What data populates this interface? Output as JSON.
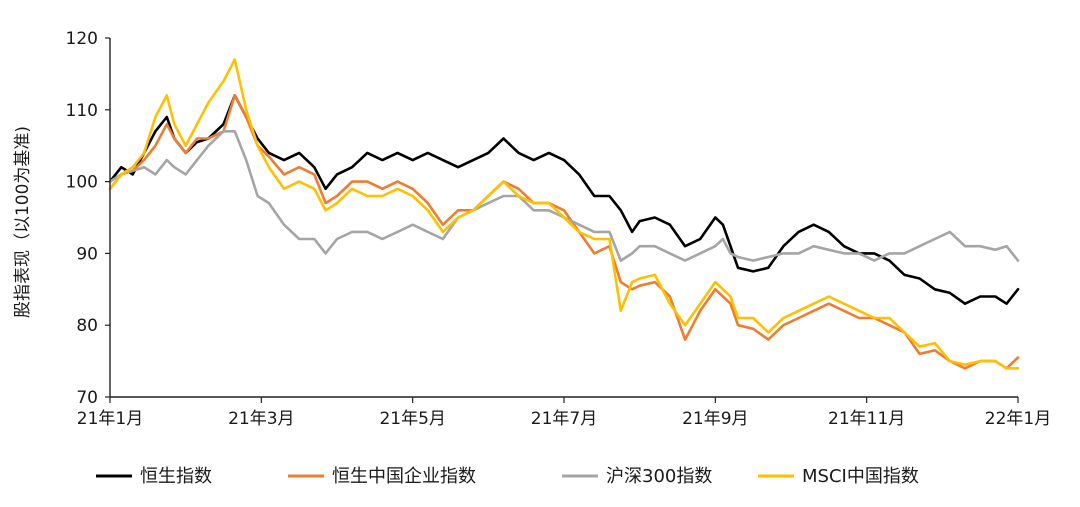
{
  "chart_data": {
    "type": "line",
    "title": "",
    "xlabel": "",
    "ylabel": "股指表现（以100为基准)",
    "ylim": [
      70,
      120
    ],
    "yticks": [
      70,
      80,
      90,
      100,
      110,
      120
    ],
    "xlim": [
      0,
      12
    ],
    "xticks": [
      {
        "x": 0,
        "label": "21年1月"
      },
      {
        "x": 2,
        "label": "21年3月"
      },
      {
        "x": 4,
        "label": "21年5月"
      },
      {
        "x": 6,
        "label": "21年7月"
      },
      {
        "x": 8,
        "label": "21年9月"
      },
      {
        "x": 10,
        "label": "21年11月"
      },
      {
        "x": 12,
        "label": "22年1月"
      }
    ],
    "grid": false,
    "legend_position": "bottom",
    "series": [
      {
        "name": "恒生指数",
        "color": "#000000",
        "points": [
          [
            0,
            100
          ],
          [
            0.15,
            102
          ],
          [
            0.3,
            101
          ],
          [
            0.45,
            104
          ],
          [
            0.6,
            107
          ],
          [
            0.75,
            109
          ],
          [
            0.85,
            106
          ],
          [
            1.0,
            104
          ],
          [
            1.15,
            105.5
          ],
          [
            1.3,
            106
          ],
          [
            1.5,
            108
          ],
          [
            1.65,
            112
          ],
          [
            1.8,
            109
          ],
          [
            1.95,
            106
          ],
          [
            2.1,
            104
          ],
          [
            2.3,
            103
          ],
          [
            2.5,
            104
          ],
          [
            2.7,
            102
          ],
          [
            2.85,
            99
          ],
          [
            3.0,
            101
          ],
          [
            3.2,
            102
          ],
          [
            3.4,
            104
          ],
          [
            3.6,
            103
          ],
          [
            3.8,
            104
          ],
          [
            4.0,
            103
          ],
          [
            4.2,
            104
          ],
          [
            4.4,
            103
          ],
          [
            4.6,
            102
          ],
          [
            4.8,
            103
          ],
          [
            5.0,
            104
          ],
          [
            5.2,
            106
          ],
          [
            5.4,
            104
          ],
          [
            5.6,
            103
          ],
          [
            5.8,
            104
          ],
          [
            6.0,
            103
          ],
          [
            6.2,
            101
          ],
          [
            6.4,
            98
          ],
          [
            6.6,
            98
          ],
          [
            6.75,
            96
          ],
          [
            6.9,
            93
          ],
          [
            7.0,
            94.5
          ],
          [
            7.2,
            95
          ],
          [
            7.4,
            94
          ],
          [
            7.6,
            91
          ],
          [
            7.8,
            92
          ],
          [
            8.0,
            95
          ],
          [
            8.1,
            94
          ],
          [
            8.2,
            91
          ],
          [
            8.3,
            88
          ],
          [
            8.5,
            87.5
          ],
          [
            8.7,
            88
          ],
          [
            8.9,
            91
          ],
          [
            9.1,
            93
          ],
          [
            9.3,
            94
          ],
          [
            9.5,
            93
          ],
          [
            9.7,
            91
          ],
          [
            9.9,
            90
          ],
          [
            10.1,
            90
          ],
          [
            10.3,
            89
          ],
          [
            10.5,
            87
          ],
          [
            10.7,
            86.5
          ],
          [
            10.9,
            85
          ],
          [
            11.1,
            84.5
          ],
          [
            11.3,
            83
          ],
          [
            11.5,
            84
          ],
          [
            11.7,
            84
          ],
          [
            11.85,
            83
          ],
          [
            12.0,
            85
          ]
        ]
      },
      {
        "name": "恒生中国企业指数",
        "color": "#ed7d31",
        "points": [
          [
            0,
            99
          ],
          [
            0.15,
            101
          ],
          [
            0.3,
            101.5
          ],
          [
            0.45,
            103
          ],
          [
            0.6,
            105
          ],
          [
            0.75,
            108
          ],
          [
            0.85,
            106
          ],
          [
            1.0,
            104
          ],
          [
            1.15,
            106
          ],
          [
            1.3,
            106
          ],
          [
            1.5,
            107
          ],
          [
            1.65,
            112
          ],
          [
            1.8,
            109
          ],
          [
            1.95,
            105
          ],
          [
            2.1,
            103.5
          ],
          [
            2.3,
            101
          ],
          [
            2.5,
            102
          ],
          [
            2.7,
            101
          ],
          [
            2.85,
            97
          ],
          [
            3.0,
            98
          ],
          [
            3.2,
            100
          ],
          [
            3.4,
            100
          ],
          [
            3.6,
            99
          ],
          [
            3.8,
            100
          ],
          [
            4.0,
            99
          ],
          [
            4.2,
            97
          ],
          [
            4.4,
            94
          ],
          [
            4.6,
            96
          ],
          [
            4.8,
            96
          ],
          [
            5.0,
            98
          ],
          [
            5.2,
            100
          ],
          [
            5.4,
            99
          ],
          [
            5.6,
            97
          ],
          [
            5.8,
            97
          ],
          [
            6.0,
            96
          ],
          [
            6.2,
            93
          ],
          [
            6.4,
            90
          ],
          [
            6.6,
            91
          ],
          [
            6.75,
            86
          ],
          [
            6.9,
            85
          ],
          [
            7.0,
            85.5
          ],
          [
            7.2,
            86
          ],
          [
            7.4,
            84
          ],
          [
            7.6,
            78
          ],
          [
            7.8,
            82
          ],
          [
            8.0,
            85
          ],
          [
            8.1,
            84
          ],
          [
            8.2,
            83
          ],
          [
            8.3,
            80
          ],
          [
            8.5,
            79.5
          ],
          [
            8.7,
            78
          ],
          [
            8.9,
            80
          ],
          [
            9.1,
            81
          ],
          [
            9.3,
            82
          ],
          [
            9.5,
            83
          ],
          [
            9.7,
            82
          ],
          [
            9.9,
            81
          ],
          [
            10.1,
            81
          ],
          [
            10.3,
            80
          ],
          [
            10.5,
            79
          ],
          [
            10.7,
            76
          ],
          [
            10.9,
            76.5
          ],
          [
            11.1,
            75
          ],
          [
            11.3,
            74
          ],
          [
            11.5,
            75
          ],
          [
            11.7,
            75
          ],
          [
            11.85,
            74
          ],
          [
            12.0,
            75.5
          ]
        ]
      },
      {
        "name": "沪深300指数",
        "color": "#a5a5a5",
        "points": [
          [
            0,
            100
          ],
          [
            0.15,
            101
          ],
          [
            0.3,
            101.5
          ],
          [
            0.45,
            102
          ],
          [
            0.6,
            101
          ],
          [
            0.75,
            103
          ],
          [
            0.85,
            102
          ],
          [
            1.0,
            101
          ],
          [
            1.15,
            103
          ],
          [
            1.3,
            105
          ],
          [
            1.5,
            107
          ],
          [
            1.65,
            107
          ],
          [
            1.8,
            103
          ],
          [
            1.95,
            98
          ],
          [
            2.1,
            97
          ],
          [
            2.3,
            94
          ],
          [
            2.5,
            92
          ],
          [
            2.7,
            92
          ],
          [
            2.85,
            90
          ],
          [
            3.0,
            92
          ],
          [
            3.2,
            93
          ],
          [
            3.4,
            93
          ],
          [
            3.6,
            92
          ],
          [
            3.8,
            93
          ],
          [
            4.0,
            94
          ],
          [
            4.2,
            93
          ],
          [
            4.4,
            92
          ],
          [
            4.6,
            95
          ],
          [
            4.8,
            96
          ],
          [
            5.0,
            97
          ],
          [
            5.2,
            98
          ],
          [
            5.4,
            98
          ],
          [
            5.6,
            96
          ],
          [
            5.8,
            96
          ],
          [
            6.0,
            95
          ],
          [
            6.2,
            94
          ],
          [
            6.4,
            93
          ],
          [
            6.6,
            93
          ],
          [
            6.75,
            89
          ],
          [
            6.9,
            90
          ],
          [
            7.0,
            91
          ],
          [
            7.2,
            91
          ],
          [
            7.4,
            90
          ],
          [
            7.6,
            89
          ],
          [
            7.8,
            90
          ],
          [
            8.0,
            91
          ],
          [
            8.1,
            92
          ],
          [
            8.2,
            90
          ],
          [
            8.3,
            89.5
          ],
          [
            8.5,
            89
          ],
          [
            8.7,
            89.5
          ],
          [
            8.9,
            90
          ],
          [
            9.1,
            90
          ],
          [
            9.3,
            91
          ],
          [
            9.5,
            90.5
          ],
          [
            9.7,
            90
          ],
          [
            9.9,
            90
          ],
          [
            10.1,
            89
          ],
          [
            10.3,
            90
          ],
          [
            10.5,
            90
          ],
          [
            10.7,
            91
          ],
          [
            10.9,
            92
          ],
          [
            11.1,
            93
          ],
          [
            11.3,
            91
          ],
          [
            11.5,
            91
          ],
          [
            11.7,
            90.5
          ],
          [
            11.85,
            91
          ],
          [
            12.0,
            89
          ]
        ]
      },
      {
        "name": "MSCI中国指数",
        "color": "#ffc000",
        "points": [
          [
            0,
            99
          ],
          [
            0.15,
            101
          ],
          [
            0.3,
            102
          ],
          [
            0.45,
            104
          ],
          [
            0.6,
            109
          ],
          [
            0.75,
            112
          ],
          [
            0.85,
            108
          ],
          [
            1.0,
            105
          ],
          [
            1.15,
            108
          ],
          [
            1.3,
            111
          ],
          [
            1.5,
            114
          ],
          [
            1.65,
            117
          ],
          [
            1.8,
            110
          ],
          [
            1.95,
            105
          ],
          [
            2.1,
            102
          ],
          [
            2.3,
            99
          ],
          [
            2.5,
            100
          ],
          [
            2.7,
            99
          ],
          [
            2.85,
            96
          ],
          [
            3.0,
            97
          ],
          [
            3.2,
            99
          ],
          [
            3.4,
            98
          ],
          [
            3.6,
            98
          ],
          [
            3.8,
            99
          ],
          [
            4.0,
            98
          ],
          [
            4.2,
            96
          ],
          [
            4.4,
            93
          ],
          [
            4.6,
            95
          ],
          [
            4.8,
            96
          ],
          [
            5.0,
            98
          ],
          [
            5.2,
            100
          ],
          [
            5.4,
            98
          ],
          [
            5.6,
            97
          ],
          [
            5.8,
            97
          ],
          [
            6.0,
            95
          ],
          [
            6.2,
            93
          ],
          [
            6.4,
            92
          ],
          [
            6.6,
            92
          ],
          [
            6.75,
            82
          ],
          [
            6.9,
            86
          ],
          [
            7.0,
            86.5
          ],
          [
            7.2,
            87
          ],
          [
            7.4,
            83
          ],
          [
            7.6,
            80
          ],
          [
            7.8,
            83
          ],
          [
            8.0,
            86
          ],
          [
            8.1,
            85
          ],
          [
            8.2,
            84
          ],
          [
            8.3,
            81
          ],
          [
            8.5,
            81
          ],
          [
            8.7,
            79
          ],
          [
            8.9,
            81
          ],
          [
            9.1,
            82
          ],
          [
            9.3,
            83
          ],
          [
            9.5,
            84
          ],
          [
            9.7,
            83
          ],
          [
            9.9,
            82
          ],
          [
            10.1,
            81
          ],
          [
            10.3,
            81
          ],
          [
            10.5,
            79
          ],
          [
            10.7,
            77
          ],
          [
            10.9,
            77.5
          ],
          [
            11.1,
            75
          ],
          [
            11.3,
            74.5
          ],
          [
            11.5,
            75
          ],
          [
            11.7,
            75
          ],
          [
            11.85,
            74
          ],
          [
            12.0,
            74
          ]
        ]
      }
    ]
  }
}
